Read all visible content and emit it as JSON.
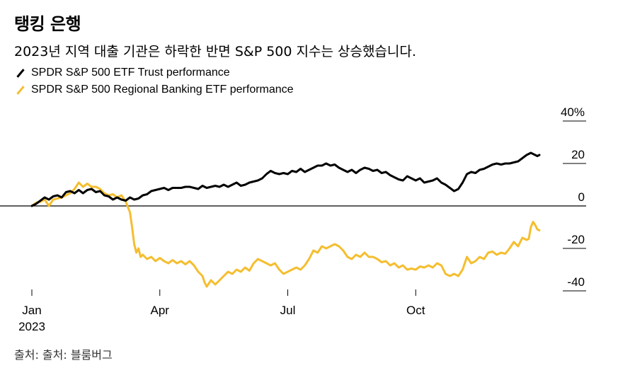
{
  "title": "탱킹 은행",
  "subtitle": "2023년 지역 대출 기관은 하락한 반면 S&P 500 지수는 상승했습니다.",
  "source": "출처: 출처: 블룸버그",
  "colors": {
    "spy": "#000000",
    "kre": "#f5be2f",
    "zero_line": "#000000",
    "grid": "#000000"
  },
  "chart_data": {
    "type": "line",
    "title": "탱킹 은행",
    "xlabel": "",
    "ylabel": "",
    "ylim": [
      -45,
      40
    ],
    "y_ticks": [
      {
        "value": 40,
        "label": "40%"
      },
      {
        "value": 20,
        "label": "20"
      },
      {
        "value": 0,
        "label": "0"
      },
      {
        "value": -20,
        "label": "-20"
      },
      {
        "value": -40,
        "label": "-40"
      }
    ],
    "x_range": [
      0,
      11.9
    ],
    "x_ticks": [
      {
        "value": 0,
        "label": "Jan",
        "sublabel": "2023"
      },
      {
        "value": 3,
        "label": "Apr",
        "sublabel": ""
      },
      {
        "value": 6,
        "label": "Jul",
        "sublabel": ""
      },
      {
        "value": 9,
        "label": "Oct",
        "sublabel": ""
      }
    ],
    "legend_position": "top-left",
    "series": [
      {
        "name": "SPDR S&P 500 ETF Trust performance",
        "color_key": "spy",
        "points": [
          [
            0,
            0
          ],
          [
            0.1,
            1
          ],
          [
            0.2,
            2.5
          ],
          [
            0.3,
            4
          ],
          [
            0.4,
            3
          ],
          [
            0.5,
            4.5
          ],
          [
            0.6,
            5
          ],
          [
            0.7,
            4
          ],
          [
            0.8,
            6.5
          ],
          [
            0.9,
            7
          ],
          [
            1.0,
            6
          ],
          [
            1.1,
            7.5
          ],
          [
            1.2,
            6
          ],
          [
            1.3,
            7.5
          ],
          [
            1.4,
            8
          ],
          [
            1.5,
            6.5
          ],
          [
            1.6,
            7
          ],
          [
            1.7,
            5
          ],
          [
            1.8,
            4.5
          ],
          [
            1.9,
            3
          ],
          [
            2.0,
            4
          ],
          [
            2.1,
            3
          ],
          [
            2.2,
            2.5
          ],
          [
            2.3,
            4
          ],
          [
            2.4,
            3
          ],
          [
            2.5,
            3.5
          ],
          [
            2.6,
            5
          ],
          [
            2.7,
            5.5
          ],
          [
            2.8,
            7
          ],
          [
            2.9,
            7.5
          ],
          [
            3.0,
            8
          ],
          [
            3.1,
            8.5
          ],
          [
            3.2,
            7.5
          ],
          [
            3.3,
            8.5
          ],
          [
            3.4,
            8.5
          ],
          [
            3.5,
            8.5
          ],
          [
            3.6,
            9
          ],
          [
            3.7,
            9
          ],
          [
            3.8,
            8.5
          ],
          [
            3.9,
            8
          ],
          [
            4.0,
            9.5
          ],
          [
            4.1,
            8.5
          ],
          [
            4.2,
            9
          ],
          [
            4.3,
            9.5
          ],
          [
            4.4,
            9
          ],
          [
            4.5,
            10
          ],
          [
            4.6,
            9
          ],
          [
            4.7,
            10
          ],
          [
            4.8,
            11
          ],
          [
            4.9,
            9.5
          ],
          [
            5.0,
            10
          ],
          [
            5.1,
            11
          ],
          [
            5.2,
            11.5
          ],
          [
            5.3,
            12
          ],
          [
            5.4,
            13
          ],
          [
            5.5,
            15
          ],
          [
            5.6,
            16.5
          ],
          [
            5.7,
            15.5
          ],
          [
            5.8,
            15
          ],
          [
            5.9,
            15.5
          ],
          [
            6.0,
            15
          ],
          [
            6.1,
            16.5
          ],
          [
            6.2,
            16
          ],
          [
            6.3,
            17.5
          ],
          [
            6.4,
            16
          ],
          [
            6.5,
            17
          ],
          [
            6.6,
            18
          ],
          [
            6.7,
            19
          ],
          [
            6.8,
            19
          ],
          [
            6.9,
            20
          ],
          [
            7.0,
            19
          ],
          [
            7.1,
            19.5
          ],
          [
            7.2,
            18
          ],
          [
            7.3,
            17
          ],
          [
            7.4,
            16
          ],
          [
            7.5,
            17
          ],
          [
            7.6,
            15.5
          ],
          [
            7.7,
            17
          ],
          [
            7.8,
            18
          ],
          [
            7.9,
            17.5
          ],
          [
            8.0,
            16.5
          ],
          [
            8.1,
            17
          ],
          [
            8.2,
            15.5
          ],
          [
            8.3,
            16
          ],
          [
            8.4,
            14.5
          ],
          [
            8.5,
            13.5
          ],
          [
            8.6,
            12.5
          ],
          [
            8.7,
            12
          ],
          [
            8.8,
            14
          ],
          [
            8.9,
            13
          ],
          [
            9.0,
            12
          ],
          [
            9.1,
            13
          ],
          [
            9.2,
            11
          ],
          [
            9.3,
            11.5
          ],
          [
            9.4,
            12
          ],
          [
            9.5,
            13
          ],
          [
            9.6,
            11
          ],
          [
            9.7,
            10
          ],
          [
            9.8,
            8.5
          ],
          [
            9.9,
            7
          ],
          [
            10.0,
            8
          ],
          [
            10.1,
            11
          ],
          [
            10.2,
            15
          ],
          [
            10.3,
            16
          ],
          [
            10.4,
            15.5
          ],
          [
            10.5,
            17
          ],
          [
            10.6,
            17.5
          ],
          [
            10.7,
            18.5
          ],
          [
            10.8,
            19.5
          ],
          [
            10.9,
            20
          ],
          [
            11.0,
            19.5
          ],
          [
            11.1,
            20
          ],
          [
            11.2,
            20
          ],
          [
            11.3,
            20.5
          ],
          [
            11.4,
            21
          ],
          [
            11.5,
            22.5
          ],
          [
            11.6,
            24
          ],
          [
            11.7,
            25
          ],
          [
            11.8,
            24
          ],
          [
            11.85,
            23.5
          ],
          [
            11.9,
            24
          ]
        ]
      },
      {
        "name": "SPDR S&P 500 Regional Banking ETF performance",
        "color_key": "kre",
        "points": [
          [
            0,
            0
          ],
          [
            0.1,
            1.5
          ],
          [
            0.2,
            2
          ],
          [
            0.3,
            3
          ],
          [
            0.4,
            0
          ],
          [
            0.5,
            3
          ],
          [
            0.6,
            3.5
          ],
          [
            0.7,
            4
          ],
          [
            0.8,
            5
          ],
          [
            0.9,
            6
          ],
          [
            1.0,
            8
          ],
          [
            1.1,
            11
          ],
          [
            1.2,
            9
          ],
          [
            1.3,
            10.5
          ],
          [
            1.4,
            9
          ],
          [
            1.5,
            9
          ],
          [
            1.6,
            8
          ],
          [
            1.7,
            6
          ],
          [
            1.8,
            5
          ],
          [
            1.9,
            5.5
          ],
          [
            2.0,
            4
          ],
          [
            2.1,
            5
          ],
          [
            2.2,
            2
          ],
          [
            2.3,
            -3
          ],
          [
            2.35,
            -10
          ],
          [
            2.4,
            -18
          ],
          [
            2.45,
            -22
          ],
          [
            2.5,
            -20
          ],
          [
            2.55,
            -24
          ],
          [
            2.6,
            -23
          ],
          [
            2.7,
            -25
          ],
          [
            2.8,
            -24
          ],
          [
            2.9,
            -26
          ],
          [
            3.0,
            -24.5
          ],
          [
            3.1,
            -26
          ],
          [
            3.2,
            -27
          ],
          [
            3.3,
            -25.5
          ],
          [
            3.4,
            -27
          ],
          [
            3.5,
            -26
          ],
          [
            3.6,
            -27.5
          ],
          [
            3.7,
            -26
          ],
          [
            3.8,
            -28
          ],
          [
            3.9,
            -31
          ],
          [
            4.0,
            -33
          ],
          [
            4.05,
            -36
          ],
          [
            4.1,
            -38
          ],
          [
            4.2,
            -35
          ],
          [
            4.3,
            -37
          ],
          [
            4.4,
            -35
          ],
          [
            4.5,
            -33
          ],
          [
            4.6,
            -31
          ],
          [
            4.7,
            -32
          ],
          [
            4.8,
            -30
          ],
          [
            4.9,
            -31
          ],
          [
            5.0,
            -29
          ],
          [
            5.1,
            -30.5
          ],
          [
            5.2,
            -27
          ],
          [
            5.3,
            -25
          ],
          [
            5.4,
            -26
          ],
          [
            5.5,
            -27
          ],
          [
            5.6,
            -28
          ],
          [
            5.7,
            -27
          ],
          [
            5.8,
            -30
          ],
          [
            5.9,
            -32
          ],
          [
            6.0,
            -31
          ],
          [
            6.1,
            -30
          ],
          [
            6.2,
            -29
          ],
          [
            6.3,
            -30
          ],
          [
            6.4,
            -28
          ],
          [
            6.5,
            -25
          ],
          [
            6.6,
            -21
          ],
          [
            6.7,
            -22
          ],
          [
            6.8,
            -19
          ],
          [
            6.9,
            -20
          ],
          [
            7.0,
            -19
          ],
          [
            7.1,
            -18
          ],
          [
            7.2,
            -19
          ],
          [
            7.3,
            -21
          ],
          [
            7.4,
            -24
          ],
          [
            7.5,
            -25
          ],
          [
            7.6,
            -23
          ],
          [
            7.7,
            -24
          ],
          [
            7.8,
            -22
          ],
          [
            7.9,
            -24
          ],
          [
            8.0,
            -24
          ],
          [
            8.1,
            -25
          ],
          [
            8.2,
            -26.5
          ],
          [
            8.3,
            -26
          ],
          [
            8.4,
            -28
          ],
          [
            8.5,
            -27
          ],
          [
            8.6,
            -29
          ],
          [
            8.7,
            -28
          ],
          [
            8.8,
            -30
          ],
          [
            8.9,
            -29.5
          ],
          [
            9.0,
            -30
          ],
          [
            9.1,
            -28.5
          ],
          [
            9.2,
            -29
          ],
          [
            9.3,
            -28
          ],
          [
            9.4,
            -29
          ],
          [
            9.5,
            -27
          ],
          [
            9.6,
            -28
          ],
          [
            9.7,
            -32
          ],
          [
            9.8,
            -33
          ],
          [
            9.9,
            -32
          ],
          [
            10.0,
            -33
          ],
          [
            10.1,
            -30
          ],
          [
            10.2,
            -24
          ],
          [
            10.3,
            -27
          ],
          [
            10.4,
            -26
          ],
          [
            10.5,
            -24
          ],
          [
            10.6,
            -25
          ],
          [
            10.7,
            -22
          ],
          [
            10.8,
            -21.5
          ],
          [
            10.9,
            -23
          ],
          [
            11.0,
            -22
          ],
          [
            11.1,
            -22.5
          ],
          [
            11.2,
            -20
          ],
          [
            11.3,
            -17
          ],
          [
            11.4,
            -19
          ],
          [
            11.5,
            -15
          ],
          [
            11.6,
            -16
          ],
          [
            11.65,
            -15.5
          ],
          [
            11.7,
            -10
          ],
          [
            11.75,
            -7.5
          ],
          [
            11.8,
            -9
          ],
          [
            11.85,
            -11
          ],
          [
            11.9,
            -11.5
          ]
        ]
      }
    ]
  }
}
